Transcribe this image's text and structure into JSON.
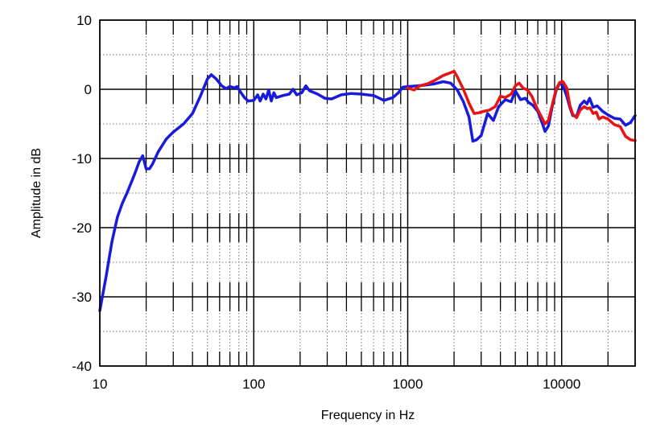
{
  "chart_data": {
    "type": "line",
    "title": "",
    "xlabel": "Frequency in Hz",
    "ylabel": "Amplitude in dB",
    "x_scale": "log",
    "xlim": [
      10,
      30000
    ],
    "ylim": [
      -40,
      10
    ],
    "x_tick_labels": [
      "10",
      "100",
      "1000",
      "10000"
    ],
    "x_tick_values": [
      10,
      100,
      1000,
      10000
    ],
    "y_tick_labels": [
      "10",
      "0",
      "-10",
      "-20",
      "-30",
      "-40"
    ],
    "y_tick_values": [
      10,
      0,
      -10,
      -20,
      -30,
      -40
    ],
    "grid": true,
    "legend": "none",
    "series": [
      {
        "color": "#1a1adc",
        "points": [
          [
            10,
            -32
          ],
          [
            11,
            -27
          ],
          [
            12,
            -22
          ],
          [
            13,
            -18.5
          ],
          [
            14,
            -16.5
          ],
          [
            15,
            -15
          ],
          [
            16,
            -13.5
          ],
          [
            17,
            -12
          ],
          [
            18,
            -10.5
          ],
          [
            19,
            -9.6
          ],
          [
            20,
            -11.5
          ],
          [
            21,
            -11.5
          ],
          [
            22,
            -10.8
          ],
          [
            24,
            -9
          ],
          [
            27,
            -7.2
          ],
          [
            30,
            -6.2
          ],
          [
            35,
            -5
          ],
          [
            40,
            -3.5
          ],
          [
            45,
            -1
          ],
          [
            50,
            1.5
          ],
          [
            53,
            2.1
          ],
          [
            57,
            1.5
          ],
          [
            62,
            0.5
          ],
          [
            66,
            0.1
          ],
          [
            70,
            0.4
          ],
          [
            75,
            0.2
          ],
          [
            78,
            0.4
          ],
          [
            82,
            -0.4
          ],
          [
            87,
            -1.2
          ],
          [
            92,
            -1.7
          ],
          [
            100,
            -1.6
          ],
          [
            106,
            -0.8
          ],
          [
            110,
            -1.7
          ],
          [
            115,
            -0.7
          ],
          [
            120,
            -1.4
          ],
          [
            125,
            -0.1
          ],
          [
            130,
            -1.7
          ],
          [
            135,
            -0.5
          ],
          [
            140,
            -1.2
          ],
          [
            155,
            -0.9
          ],
          [
            170,
            -0.7
          ],
          [
            180,
            0
          ],
          [
            190,
            -0.8
          ],
          [
            205,
            -0.5
          ],
          [
            218,
            0.5
          ],
          [
            230,
            -0.2
          ],
          [
            260,
            -0.7
          ],
          [
            290,
            -1.3
          ],
          [
            320,
            -1.4
          ],
          [
            370,
            -0.8
          ],
          [
            430,
            -0.6
          ],
          [
            500,
            -0.7
          ],
          [
            600,
            -0.9
          ],
          [
            700,
            -1.6
          ],
          [
            800,
            -1.2
          ],
          [
            870,
            -0.5
          ],
          [
            930,
            0.3
          ],
          [
            1000,
            0.4
          ],
          [
            1150,
            0.5
          ],
          [
            1300,
            0.6
          ],
          [
            1500,
            0.8
          ],
          [
            1700,
            1.1
          ],
          [
            1900,
            0.9
          ],
          [
            2100,
            -0.1
          ],
          [
            2300,
            -1.8
          ],
          [
            2500,
            -4
          ],
          [
            2650,
            -7.5
          ],
          [
            2800,
            -7.3
          ],
          [
            3000,
            -6.7
          ],
          [
            3300,
            -3.5
          ],
          [
            3600,
            -4.5
          ],
          [
            3900,
            -2.5
          ],
          [
            4300,
            -1.5
          ],
          [
            4700,
            -1.8
          ],
          [
            5000,
            -0.2
          ],
          [
            5400,
            -1.5
          ],
          [
            5800,
            -1.3
          ],
          [
            6100,
            -1.9
          ],
          [
            6500,
            -2.3
          ],
          [
            7000,
            -3.2
          ],
          [
            7500,
            -5
          ],
          [
            7800,
            -6.1
          ],
          [
            8200,
            -5.3
          ],
          [
            8700,
            -2.4
          ],
          [
            9200,
            -0.2
          ],
          [
            9700,
            0.9
          ],
          [
            10200,
            0.5
          ],
          [
            10800,
            -1
          ],
          [
            11300,
            -2.6
          ],
          [
            11800,
            -3.8
          ],
          [
            12500,
            -3.9
          ],
          [
            13200,
            -2.3
          ],
          [
            14000,
            -1.7
          ],
          [
            14600,
            -2.1
          ],
          [
            15200,
            -1.3
          ],
          [
            16000,
            -2.6
          ],
          [
            17000,
            -2.4
          ],
          [
            18500,
            -3.2
          ],
          [
            20000,
            -3.7
          ],
          [
            22000,
            -4.2
          ],
          [
            24000,
            -4.3
          ],
          [
            26000,
            -5.2
          ],
          [
            28000,
            -4.8
          ],
          [
            30000,
            -3.8
          ]
        ]
      },
      {
        "color": "#e81414",
        "points": [
          [
            1000,
            0.2
          ],
          [
            1100,
            -0.1
          ],
          [
            1200,
            0.5
          ],
          [
            1350,
            0.8
          ],
          [
            1500,
            1.3
          ],
          [
            1700,
            2
          ],
          [
            1900,
            2.4
          ],
          [
            2000,
            2.6
          ],
          [
            2100,
            1.8
          ],
          [
            2300,
            0
          ],
          [
            2500,
            -2
          ],
          [
            2700,
            -3.5
          ],
          [
            2900,
            -3.4
          ],
          [
            3100,
            -3.2
          ],
          [
            3400,
            -3
          ],
          [
            3700,
            -2.5
          ],
          [
            4000,
            -1
          ],
          [
            4300,
            -1.2
          ],
          [
            4700,
            -0.7
          ],
          [
            5000,
            0.5
          ],
          [
            5300,
            0.9
          ],
          [
            5600,
            0.2
          ],
          [
            6000,
            -0.1
          ],
          [
            6400,
            -1
          ],
          [
            6900,
            -2.7
          ],
          [
            7400,
            -4
          ],
          [
            7800,
            -5
          ],
          [
            8200,
            -4.5
          ],
          [
            8700,
            -2.2
          ],
          [
            9200,
            0
          ],
          [
            9700,
            1
          ],
          [
            10200,
            1.1
          ],
          [
            10800,
            0.2
          ],
          [
            11300,
            -2.3
          ],
          [
            11800,
            -3.6
          ],
          [
            12500,
            -4.1
          ],
          [
            13200,
            -3
          ],
          [
            14000,
            -2.5
          ],
          [
            14700,
            -2.8
          ],
          [
            15300,
            -2.7
          ],
          [
            16000,
            -3.5
          ],
          [
            16800,
            -3.3
          ],
          [
            17500,
            -4.3
          ],
          [
            18500,
            -4
          ],
          [
            20000,
            -4.3
          ],
          [
            22000,
            -5.1
          ],
          [
            24000,
            -5.4
          ],
          [
            26000,
            -6.8
          ],
          [
            28000,
            -7.3
          ],
          [
            30000,
            -7.4
          ]
        ]
      }
    ]
  }
}
